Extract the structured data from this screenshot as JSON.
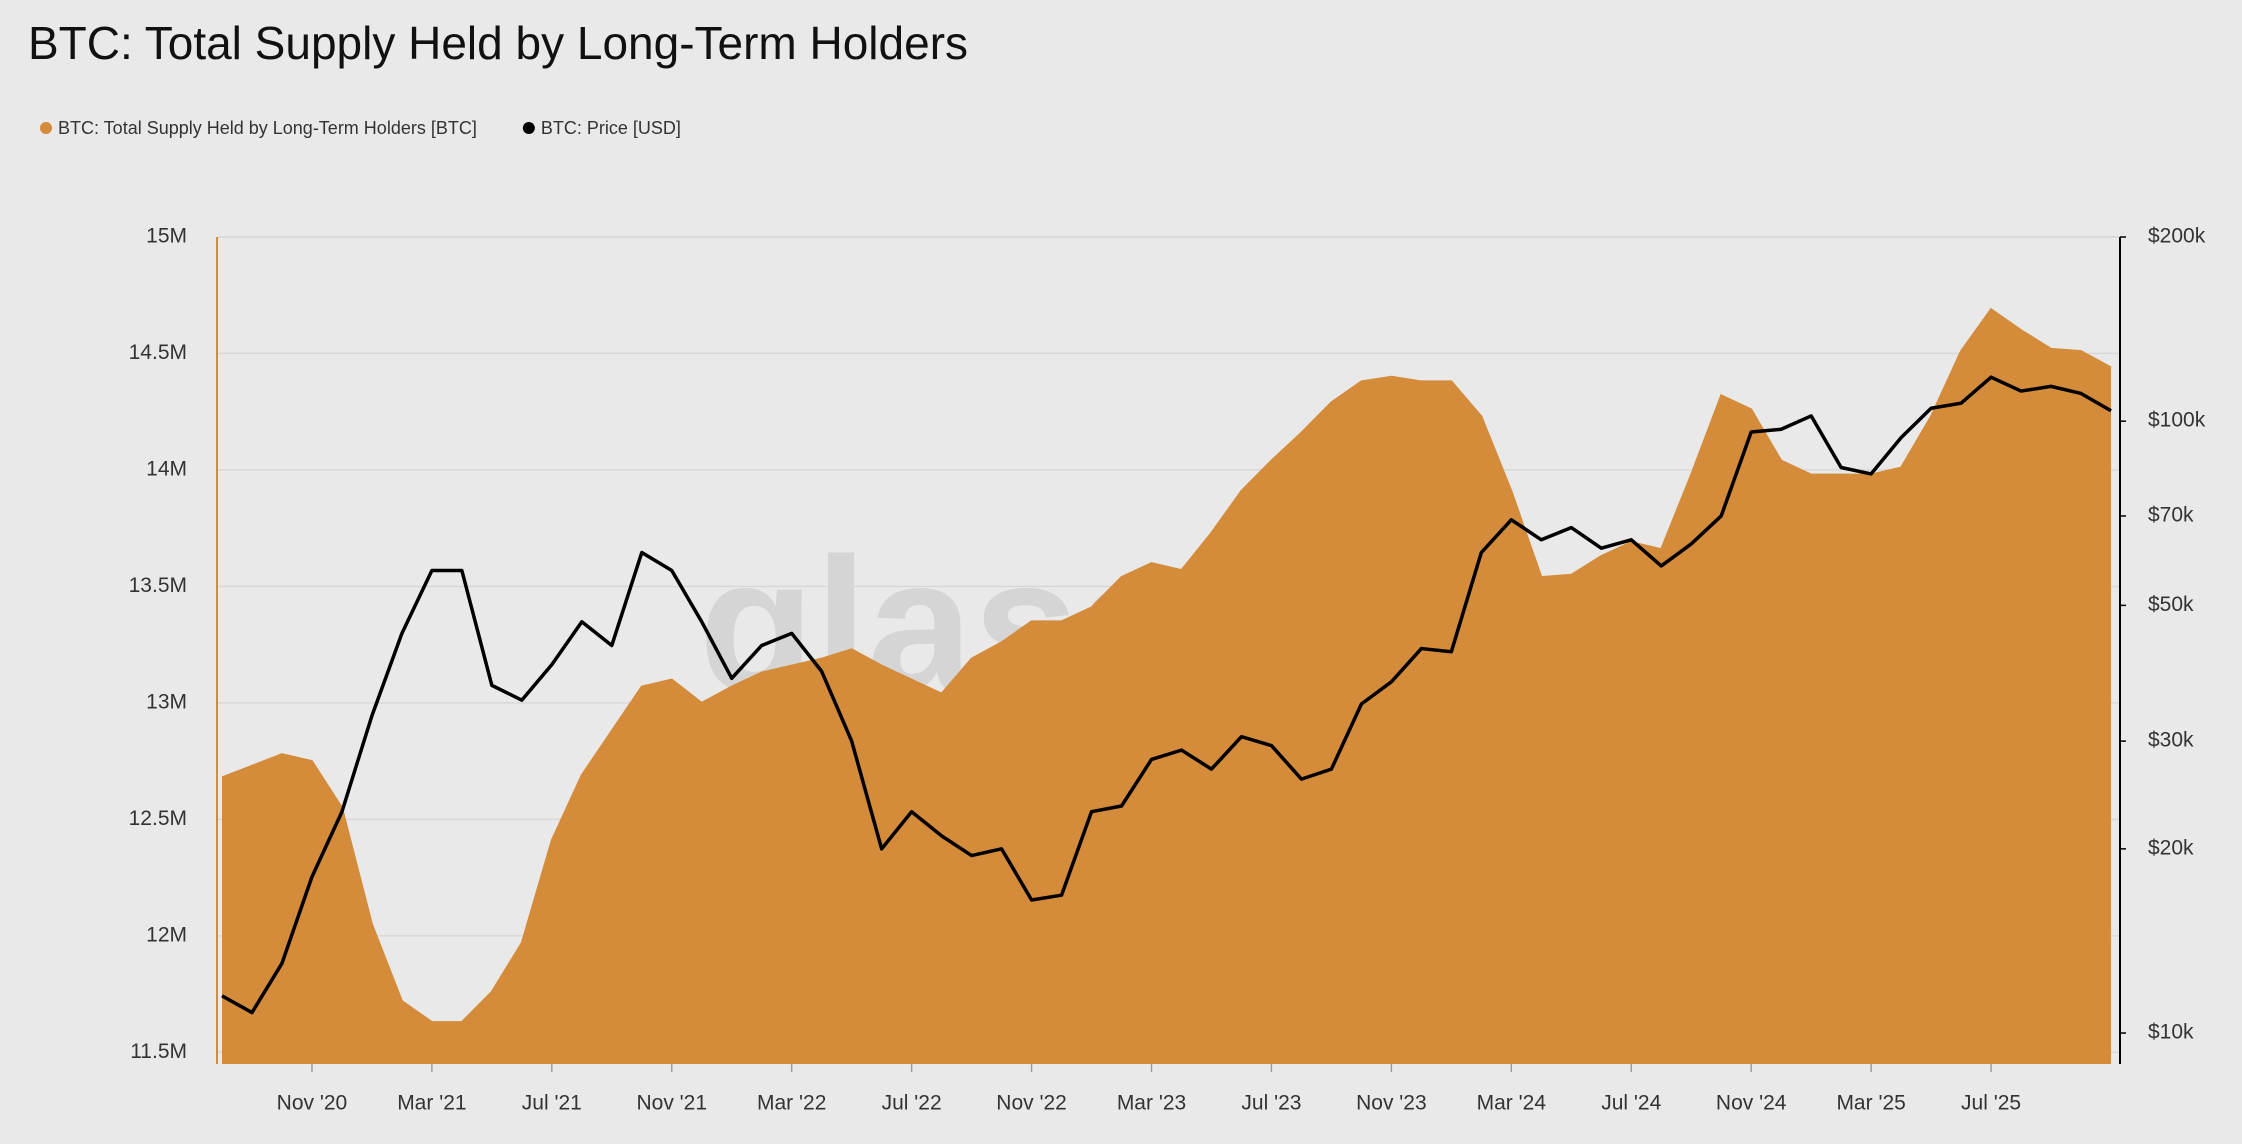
{
  "chart_data": {
    "type": "area-line",
    "title": "BTC: Total Supply Held by Long-Term Holders",
    "watermark": "glassnode",
    "categories": [
      null,
      null,
      null,
      "Nov '20",
      null,
      null,
      null,
      "Mar '21",
      null,
      null,
      null,
      "Jul '21",
      null,
      null,
      null,
      "Nov '21",
      null,
      null,
      null,
      "Mar '22",
      null,
      null,
      null,
      "Jul '22",
      null,
      null,
      null,
      "Nov '22",
      null,
      null,
      null,
      "Mar '23",
      null,
      null,
      null,
      "Jul '23",
      null,
      null,
      null,
      "Nov '23",
      null,
      null,
      null,
      "Mar '24",
      null,
      null,
      null,
      "Jul '24",
      null,
      null,
      null,
      "Nov '24",
      null,
      null,
      null,
      "Mar '25",
      null,
      null,
      null,
      "Jul '25",
      null,
      null,
      null,
      null
    ],
    "series": [
      {
        "name": "BTC: Total Supply Held by Long-Term Holders [BTC]",
        "color": "#d48b3a",
        "kind": "area",
        "values": [
          12680000,
          12730000,
          12780000,
          12750000,
          12550000,
          12050000,
          11720000,
          11630000,
          11630000,
          11760000,
          11970000,
          12410000,
          12690000,
          12880000,
          13070000,
          13100000,
          13000000,
          13070000,
          13130000,
          13160000,
          13190000,
          13230000,
          13160000,
          13100000,
          13040000,
          13190000,
          13260000,
          13350000,
          13350000,
          13410000,
          13540000,
          13600000,
          13570000,
          13730000,
          13910000,
          14040000,
          14160000,
          14290000,
          14380000,
          14400000,
          14380000,
          14380000,
          14230000,
          13910000,
          13540000,
          13550000,
          13630000,
          13690000,
          13660000,
          13980000,
          14320000,
          14260000,
          14040000,
          13980000,
          13980000,
          13980000,
          14010000,
          14230000,
          14510000,
          14690000,
          14600000,
          14520000,
          14510000,
          14440000
        ]
      },
      {
        "name": "BTC: Price [USD]",
        "color": "#000000",
        "kind": "line",
        "axis": "y2",
        "values": [
          11500,
          10800,
          13000,
          18000,
          23000,
          33000,
          45000,
          57000,
          57000,
          37000,
          35000,
          40000,
          47000,
          43000,
          61000,
          57000,
          47000,
          38000,
          43000,
          45000,
          39000,
          30000,
          20000,
          23000,
          21000,
          19500,
          20000,
          16500,
          16800,
          23000,
          23500,
          28000,
          29000,
          27000,
          30500,
          29500,
          26000,
          27000,
          34500,
          37500,
          42500,
          42000,
          61000,
          69000,
          64000,
          67000,
          62000,
          64000,
          58000,
          63000,
          70000,
          96000,
          97000,
          102000,
          84000,
          82000,
          94000,
          105000,
          107000,
          118000,
          112000,
          114000,
          111000,
          104000
        ]
      }
    ],
    "ylim": [
      11450000,
      15000000
    ],
    "yticks": [
      {
        "value": 11500000,
        "label": "11.5M"
      },
      {
        "value": 12000000,
        "label": "12M"
      },
      {
        "value": 12500000,
        "label": "12.5M"
      },
      {
        "value": 13000000,
        "label": "13M"
      },
      {
        "value": 13500000,
        "label": "13.5M"
      },
      {
        "value": 14000000,
        "label": "14M"
      },
      {
        "value": 14500000,
        "label": "14.5M"
      },
      {
        "value": 15000000,
        "label": "15M"
      }
    ],
    "y2lim": [
      8900,
      200000
    ],
    "y2scale": "log",
    "y2ticks": [
      {
        "value": 10000,
        "label": "$10k"
      },
      {
        "value": 20000,
        "label": "$20k"
      },
      {
        "value": 30000,
        "label": "$30k"
      },
      {
        "value": 50000,
        "label": "$50k"
      },
      {
        "value": 70000,
        "label": "$70k"
      },
      {
        "value": 100000,
        "label": "$100k"
      },
      {
        "value": 200000,
        "label": "$200k"
      }
    ],
    "grid": true
  }
}
